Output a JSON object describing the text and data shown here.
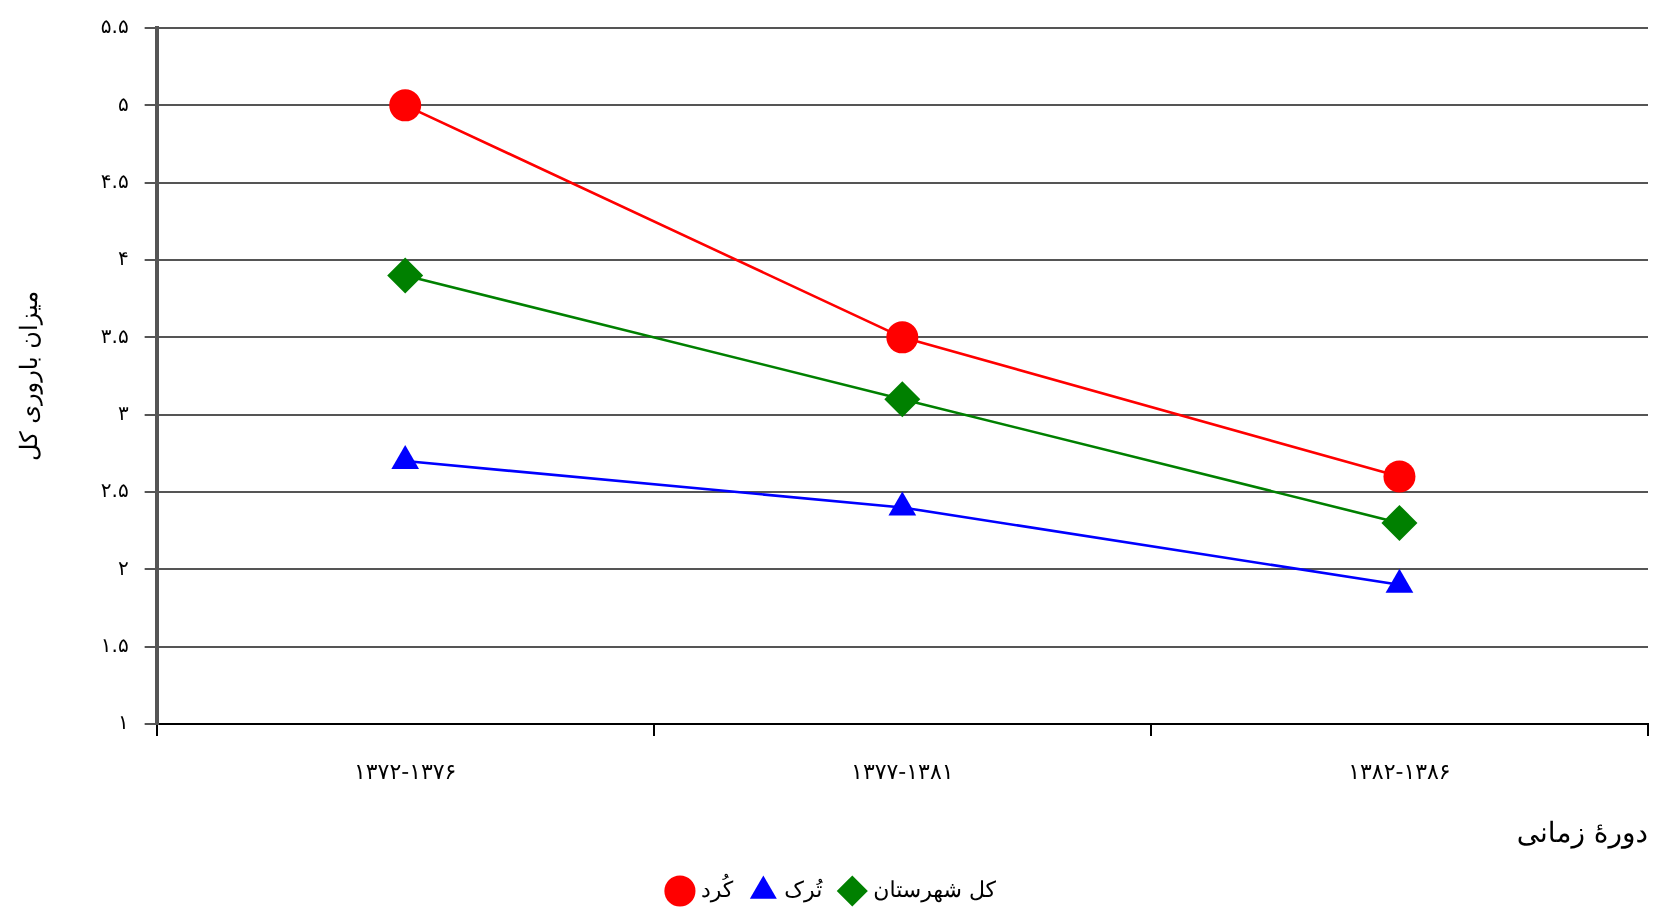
{
  "chart_data": {
    "type": "line",
    "xlabel": "دورهٔ زمانی",
    "ylabel": "میزان باروری کل",
    "categories": [
      "۱۳۷۲-۱۳۷۶",
      "۱۳۷۷-۱۳۸۱",
      "۱۳۸۲-۱۳۸۶"
    ],
    "series": [
      {
        "name": "کُرد",
        "color": "#ff0000",
        "marker": "circle",
        "values": [
          5.0,
          3.5,
          2.6
        ]
      },
      {
        "name": "تُرک",
        "color": "#0000ff",
        "marker": "triangle",
        "values": [
          2.7,
          2.4,
          1.9
        ]
      },
      {
        "name": "کل شهرستان",
        "color": "#008000",
        "marker": "diamond",
        "values": [
          3.9,
          3.1,
          2.3
        ]
      }
    ],
    "ylim": [
      1,
      5.5
    ],
    "yticks": [
      {
        "value": 1,
        "label": "۱"
      },
      {
        "value": 1.5,
        "label": "۱.۵"
      },
      {
        "value": 2,
        "label": "۲"
      },
      {
        "value": 2.5,
        "label": "۲.۵"
      },
      {
        "value": 3,
        "label": "۳"
      },
      {
        "value": 3.5,
        "label": "۳.۵"
      },
      {
        "value": 4,
        "label": "۴"
      },
      {
        "value": 4.5,
        "label": "۴.۵"
      },
      {
        "value": 5,
        "label": "۵"
      },
      {
        "value": 5.5,
        "label": "۵.۵"
      }
    ],
    "grid": "y",
    "legend": "bottom",
    "line_style": "solid"
  }
}
